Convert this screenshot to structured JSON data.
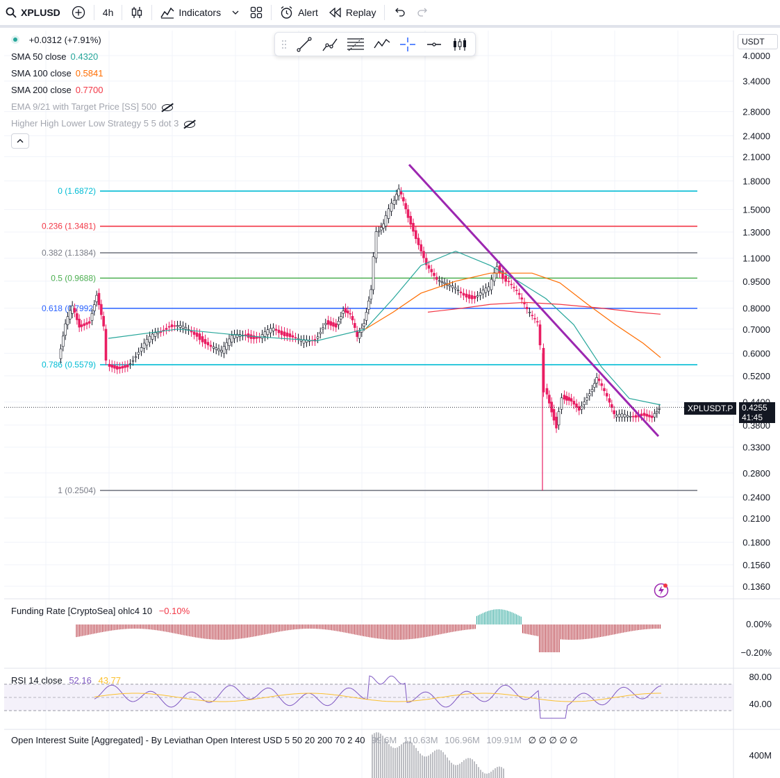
{
  "toolbar": {
    "symbol": "XPLUSD",
    "interval": "4h",
    "indicators": "Indicators",
    "alert": "Alert",
    "replay": "Replay"
  },
  "legend": {
    "change": "+0.0312 (+7.91%)",
    "sma50_label": "SMA 50 close",
    "sma50_value": "0.4320",
    "sma100_label": "SMA 100 close",
    "sma100_value": "0.5841",
    "sma200_label": "SMA 200 close",
    "sma200_value": "0.7700",
    "ema_label": "EMA 9/21 with Target Price [SS] 500",
    "hhll_label": "Higher High Lower Low Strategy 5 5 dot 3"
  },
  "currency": "USDT",
  "price_scale": [
    "4.0000",
    "3.4000",
    "2.8000",
    "2.4000",
    "2.1000",
    "1.8000",
    "1.5000",
    "1.3000",
    "1.1000",
    "0.9500",
    "0.8000",
    "0.7000",
    "0.6000",
    "0.5200",
    "0.4400",
    "0.3800",
    "0.3300",
    "0.2800",
    "0.2400",
    "0.2100",
    "0.1800",
    "0.1560",
    "0.1360"
  ],
  "current_price": {
    "symbol_tag": "XPLUSDT.P",
    "price": "0.4255",
    "countdown": "41:45"
  },
  "fib_levels": [
    {
      "label": "0 (1.6872)",
      "color": "#00bcd4"
    },
    {
      "label": "0.236 (1.3481)",
      "color": "#f23645"
    },
    {
      "label": "0.382 (1.1384)",
      "color": "#787b86"
    },
    {
      "label": "0.5 (0.9688)",
      "color": "#4caf50"
    },
    {
      "label": "0.618 (0.7992)",
      "color": "#2962ff"
    },
    {
      "label": "0.786 (0.5579)",
      "color": "#00bcd4"
    },
    {
      "label": "1 (0.2504)",
      "color": "#787b86"
    }
  ],
  "funding": {
    "label": "Funding Rate [CryptoSea] ohlc4 10",
    "value": "−0.10%",
    "scale": [
      "0.00%",
      "−0.20%"
    ]
  },
  "rsi": {
    "label": "RSI 14 close",
    "value1": "52.16",
    "value2": "43.77",
    "scale": [
      "80.00",
      "40.00"
    ]
  },
  "open_interest": {
    "label": "Open Interest Suite [Aggregated] - By Leviathan Open Interest USD 5 50 20 200 70 2 40",
    "v1": "99.6M",
    "v2": "110.63M",
    "v3": "106.96M",
    "v4": "109.91M",
    "empties": "∅ ∅ ∅ ∅ ∅",
    "scale": "400M"
  },
  "colors": {
    "up": "#131722",
    "down": "#e91e63",
    "sma50": "#26a69a",
    "sma100": "#ff6d00",
    "sma200": "#f23645",
    "trendline": "#9c27b0",
    "rsi": "#7e57c2",
    "rsi_ma": "#fbc02d"
  }
}
